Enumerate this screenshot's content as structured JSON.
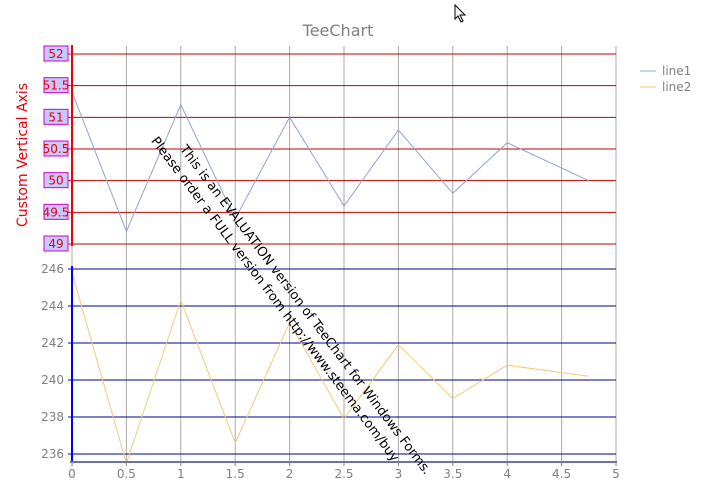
{
  "chart_data": {
    "type": "line",
    "title": "TeeChart",
    "x_ticks": [
      "0",
      "0.5",
      "1",
      "1.5",
      "2",
      "2.5",
      "3",
      "3.5",
      "4",
      "4.5",
      "5"
    ],
    "xlim": [
      0,
      5
    ],
    "custom_axis": {
      "label": "Custom Vertical Axis",
      "ticks": [
        "52",
        "51.5",
        "51",
        "50.5",
        "50",
        "49.5",
        "49"
      ],
      "ylim": [
        49,
        52
      ],
      "color": "#e8000b",
      "grid_color": "#c00000"
    },
    "bottom_axis": {
      "ticks": [
        "246",
        "244",
        "242",
        "240",
        "238",
        "236"
      ],
      "ylim": [
        235,
        246
      ],
      "grid_color": "#00008b"
    },
    "series": [
      {
        "name": "line1",
        "color": "#8fa3d0",
        "axis": "custom_axis",
        "x": [
          0,
          0.5,
          1,
          1.5,
          2,
          2.5,
          3,
          3.5,
          4,
          4.75
        ],
        "y": [
          51.4,
          49.2,
          51.2,
          49.4,
          51.0,
          49.6,
          50.8,
          49.8,
          50.6,
          50.0
        ]
      },
      {
        "name": "line2",
        "color": "#f5c97a",
        "axis": "bottom_axis",
        "x": [
          0,
          0.5,
          1,
          1.5,
          2,
          2.5,
          3,
          3.5,
          4,
          4.75
        ],
        "y": [
          245.8,
          235.5,
          244.3,
          236.6,
          243.1,
          237.9,
          241.9,
          239.0,
          240.8,
          240.2
        ]
      }
    ],
    "legend_position": "top-right",
    "grid": true,
    "watermark_lines": [
      "This is an EVALUATION version of TeeChart for Windows Forms.",
      "Please order a FULL version from http://www.steema.com/buy"
    ]
  }
}
